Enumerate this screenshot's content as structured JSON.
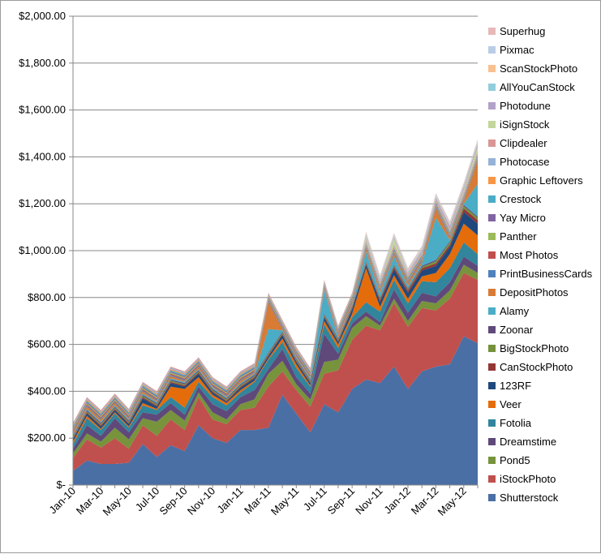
{
  "chart_data": {
    "type": "area",
    "stacked": true,
    "legend_position": "right",
    "grid": "horizontal",
    "ylim": [
      0,
      2000
    ],
    "y_ticks": [
      "$-",
      "$200.00",
      "$400.00",
      "$600.00",
      "$800.00",
      "$1,000.00",
      "$1,200.00",
      "$1,400.00",
      "$1,600.00",
      "$1,800.00",
      "$2,000.00"
    ],
    "x_ticks": [
      "Jan-10",
      "Mar-10",
      "May-10",
      "Jul-10",
      "Sep-10",
      "Nov-10",
      "Jan-11",
      "Mar-11",
      "May-11",
      "Jul-11",
      "Sep-11",
      "Nov-11",
      "Jan-12",
      "Mar-12",
      "May-12"
    ],
    "x": [
      "Jan-10",
      "Feb-10",
      "Mar-10",
      "Apr-10",
      "May-10",
      "Jun-10",
      "Jul-10",
      "Aug-10",
      "Sep-10",
      "Oct-10",
      "Nov-10",
      "Dec-10",
      "Jan-11",
      "Feb-11",
      "Mar-11",
      "Apr-11",
      "May-11",
      "Jun-11",
      "Jul-11",
      "Aug-11",
      "Sep-11",
      "Oct-11",
      "Nov-11",
      "Dec-11",
      "Jan-12",
      "Feb-12",
      "Mar-12",
      "Apr-12",
      "May-12",
      "Jun-12"
    ],
    "series": [
      {
        "name": "Shutterstock",
        "color": "#4a6fa5",
        "values": [
          60,
          105,
          90,
          90,
          95,
          175,
          120,
          170,
          145,
          255,
          200,
          180,
          235,
          235,
          245,
          385,
          305,
          225,
          345,
          310,
          410,
          450,
          435,
          505,
          410,
          485,
          505,
          515,
          635,
          605
        ]
      },
      {
        "name": "iStockPhoto",
        "color": "#c0504d",
        "values": [
          55,
          90,
          70,
          110,
          60,
          80,
          90,
          110,
          90,
          120,
          80,
          80,
          85,
          95,
          175,
          100,
          100,
          110,
          130,
          180,
          210,
          230,
          225,
          270,
          265,
          270,
          240,
          280,
          270,
          270
        ]
      },
      {
        "name": "Pond5",
        "color": "#77933c",
        "values": [
          20,
          25,
          25,
          45,
          40,
          30,
          60,
          40,
          40,
          20,
          30,
          20,
          25,
          35,
          55,
          45,
          25,
          30,
          50,
          45,
          50,
          40,
          20,
          20,
          25,
          30,
          30,
          35,
          35,
          30
        ]
      },
      {
        "name": "Dreamstime",
        "color": "#5f497a",
        "values": [
          20,
          35,
          25,
          40,
          30,
          25,
          30,
          30,
          25,
          25,
          35,
          35,
          30,
          40,
          20,
          50,
          30,
          25,
          120,
          25,
          20,
          20,
          15,
          40,
          35,
          35,
          30,
          35,
          35,
          30
        ]
      },
      {
        "name": "Fotolia",
        "color": "#31859c",
        "values": [
          20,
          30,
          25,
          20,
          20,
          30,
          20,
          25,
          30,
          20,
          30,
          25,
          20,
          35,
          40,
          30,
          40,
          30,
          40,
          25,
          25,
          40,
          45,
          40,
          40,
          50,
          60,
          60,
          60,
          50
        ]
      },
      {
        "name": "Veer",
        "color": "#e46c0a",
        "values": [
          10,
          10,
          5,
          5,
          5,
          10,
          5,
          45,
          80,
          20,
          10,
          10,
          10,
          5,
          5,
          15,
          15,
          5,
          15,
          15,
          15,
          145,
          20,
          20,
          20,
          20,
          40,
          60,
          80,
          80
        ]
      },
      {
        "name": "123RF",
        "color": "#1f497d",
        "values": [
          10,
          10,
          10,
          10,
          10,
          20,
          10,
          15,
          10,
          15,
          10,
          5,
          10,
          10,
          10,
          15,
          10,
          10,
          15,
          10,
          20,
          15,
          20,
          25,
          25,
          25,
          30,
          30,
          50,
          50
        ]
      },
      {
        "name": "CanStockPhoto",
        "color": "#943634",
        "values": [
          5,
          5,
          5,
          5,
          5,
          5,
          5,
          5,
          5,
          5,
          5,
          5,
          5,
          5,
          5,
          5,
          5,
          5,
          5,
          5,
          5,
          5,
          10,
          10,
          10,
          10,
          10,
          10,
          15,
          15
        ]
      },
      {
        "name": "BigStockPhoto",
        "color": "#76923c",
        "values": [
          5,
          5,
          5,
          5,
          5,
          5,
          5,
          5,
          5,
          5,
          5,
          5,
          5,
          5,
          5,
          5,
          5,
          5,
          5,
          5,
          5,
          5,
          5,
          5,
          5,
          5,
          10,
          10,
          10,
          10
        ]
      },
      {
        "name": "Zoonar",
        "color": "#604a7b",
        "values": [
          5,
          5,
          5,
          5,
          5,
          5,
          5,
          5,
          5,
          5,
          5,
          5,
          5,
          5,
          5,
          5,
          5,
          5,
          5,
          5,
          5,
          5,
          5,
          5,
          5,
          5,
          5,
          5,
          5,
          5
        ]
      },
      {
        "name": "Alamy",
        "color": "#4bacc6",
        "values": [
          5,
          5,
          5,
          5,
          5,
          5,
          5,
          5,
          5,
          5,
          5,
          5,
          5,
          5,
          100,
          5,
          5,
          5,
          100,
          5,
          5,
          40,
          20,
          35,
          10,
          10,
          180,
          5,
          5,
          140
        ]
      },
      {
        "name": "DepositPhotos",
        "color": "#d77b35",
        "values": [
          10,
          10,
          10,
          10,
          5,
          10,
          5,
          10,
          5,
          10,
          5,
          5,
          10,
          5,
          115,
          5,
          5,
          5,
          5,
          10,
          10,
          10,
          10,
          10,
          10,
          10,
          40,
          10,
          10,
          100
        ]
      },
      {
        "name": "PrintBusinessCards",
        "color": "#4f81bd",
        "values": [
          5,
          5,
          5,
          5,
          5,
          5,
          5,
          5,
          5,
          5,
          5,
          5,
          5,
          5,
          5,
          5,
          5,
          5,
          5,
          5,
          5,
          5,
          5,
          5,
          5,
          5,
          5,
          5,
          5,
          5
        ]
      },
      {
        "name": "Most Photos",
        "color": "#c0504d",
        "values": [
          5,
          5,
          5,
          5,
          5,
          5,
          5,
          5,
          5,
          5,
          5,
          5,
          5,
          5,
          5,
          5,
          5,
          5,
          5,
          5,
          5,
          5,
          5,
          5,
          5,
          5,
          5,
          5,
          5,
          5
        ]
      },
      {
        "name": "Panther",
        "color": "#9bbb59",
        "values": [
          5,
          5,
          5,
          5,
          5,
          5,
          5,
          5,
          5,
          5,
          5,
          5,
          5,
          5,
          5,
          5,
          5,
          5,
          5,
          5,
          5,
          5,
          5,
          5,
          5,
          5,
          5,
          5,
          5,
          5
        ]
      },
      {
        "name": "Yay Micro",
        "color": "#8064a2",
        "values": [
          5,
          5,
          5,
          5,
          5,
          5,
          5,
          5,
          5,
          5,
          5,
          5,
          5,
          5,
          5,
          5,
          5,
          5,
          5,
          5,
          5,
          5,
          5,
          5,
          5,
          5,
          5,
          5,
          5,
          5
        ]
      },
      {
        "name": "Crestock",
        "color": "#4bacc6",
        "values": [
          5,
          5,
          5,
          5,
          5,
          5,
          5,
          5,
          5,
          5,
          5,
          5,
          5,
          5,
          5,
          5,
          5,
          5,
          5,
          5,
          5,
          5,
          5,
          5,
          5,
          5,
          5,
          5,
          5,
          5
        ]
      },
      {
        "name": "Graphic Leftovers",
        "color": "#f79646",
        "values": [
          5,
          5,
          5,
          5,
          5,
          5,
          5,
          5,
          5,
          5,
          5,
          5,
          5,
          5,
          5,
          5,
          5,
          5,
          5,
          5,
          5,
          5,
          5,
          5,
          5,
          5,
          5,
          5,
          5,
          5
        ]
      },
      {
        "name": "Photocase",
        "color": "#95b3d7",
        "values": [
          5,
          5,
          5,
          5,
          5,
          5,
          5,
          5,
          5,
          5,
          5,
          5,
          5,
          5,
          5,
          5,
          5,
          5,
          5,
          5,
          5,
          5,
          5,
          5,
          5,
          5,
          5,
          5,
          5,
          5
        ]
      },
      {
        "name": "Clipdealer",
        "color": "#d99694",
        "values": [
          5,
          5,
          5,
          5,
          5,
          5,
          5,
          5,
          5,
          5,
          5,
          5,
          5,
          5,
          5,
          5,
          5,
          5,
          5,
          5,
          5,
          5,
          5,
          5,
          5,
          5,
          5,
          5,
          5,
          5
        ]
      },
      {
        "name": "iSignStock",
        "color": "#c3d69b",
        "values": [
          0,
          0,
          0,
          0,
          0,
          0,
          0,
          0,
          0,
          0,
          0,
          0,
          0,
          0,
          0,
          0,
          0,
          0,
          0,
          0,
          0,
          10,
          0,
          25,
          0,
          0,
          0,
          0,
          10,
          20
        ]
      },
      {
        "name": "Photodune",
        "color": "#b2a2c7",
        "values": [
          0,
          0,
          0,
          0,
          0,
          0,
          0,
          0,
          0,
          0,
          0,
          0,
          0,
          0,
          0,
          0,
          0,
          0,
          0,
          0,
          0,
          5,
          5,
          5,
          5,
          5,
          5,
          10,
          10,
          10
        ]
      },
      {
        "name": "AllYouCanStock",
        "color": "#92cddc",
        "values": [
          0,
          0,
          0,
          0,
          0,
          0,
          0,
          0,
          0,
          0,
          0,
          0,
          0,
          0,
          0,
          0,
          0,
          0,
          0,
          0,
          0,
          5,
          5,
          5,
          5,
          5,
          5,
          5,
          5,
          5
        ]
      },
      {
        "name": "ScanStockPhoto",
        "color": "#fac090",
        "values": [
          0,
          0,
          0,
          0,
          0,
          0,
          0,
          0,
          0,
          0,
          0,
          0,
          0,
          0,
          0,
          0,
          0,
          0,
          0,
          0,
          0,
          5,
          5,
          5,
          5,
          5,
          5,
          5,
          5,
          5
        ]
      },
      {
        "name": "Pixmac",
        "color": "#b9cde5",
        "values": [
          0,
          0,
          0,
          0,
          0,
          0,
          0,
          0,
          0,
          0,
          0,
          0,
          0,
          0,
          0,
          0,
          0,
          0,
          0,
          0,
          0,
          5,
          5,
          5,
          5,
          5,
          5,
          5,
          5,
          5
        ]
      },
      {
        "name": "Superhug",
        "color": "#e6b9b8",
        "values": [
          0,
          0,
          0,
          0,
          0,
          0,
          0,
          0,
          0,
          0,
          0,
          0,
          0,
          0,
          0,
          0,
          0,
          0,
          0,
          0,
          0,
          5,
          5,
          5,
          5,
          5,
          5,
          5,
          5,
          5
        ]
      }
    ]
  }
}
